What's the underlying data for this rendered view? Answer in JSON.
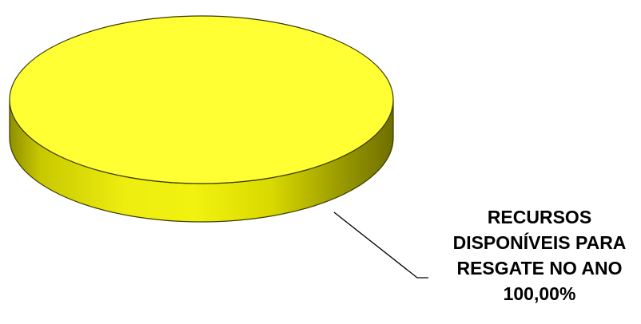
{
  "chart_data": {
    "type": "pie",
    "style": "3d",
    "slices": [
      {
        "label": "RECURSOS DISPONÍVEIS PARA RESGATE NO ANO",
        "label_lines": [
          "RECURSOS",
          "DISPONÍVEIS PARA",
          "RESGATE NO ANO"
        ],
        "value": 100.0,
        "value_label": "100,00%",
        "color": "#FFFF33"
      }
    ],
    "legend": false,
    "data_labels": "outside-with-leader-line"
  }
}
